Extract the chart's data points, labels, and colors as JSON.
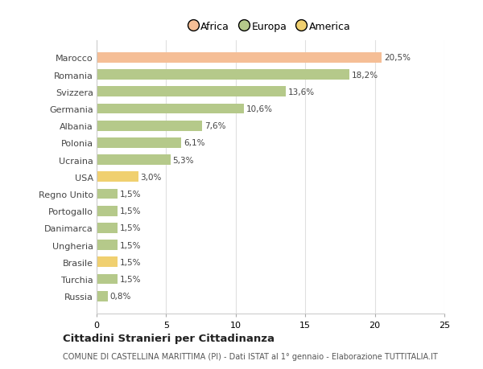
{
  "countries": [
    "Marocco",
    "Romania",
    "Svizzera",
    "Germania",
    "Albania",
    "Polonia",
    "Ucraina",
    "USA",
    "Regno Unito",
    "Portogallo",
    "Danimarca",
    "Ungheria",
    "Brasile",
    "Turchia",
    "Russia"
  ],
  "values": [
    20.5,
    18.2,
    13.6,
    10.6,
    7.6,
    6.1,
    5.3,
    3.0,
    1.5,
    1.5,
    1.5,
    1.5,
    1.5,
    1.5,
    0.8
  ],
  "labels": [
    "20,5%",
    "18,2%",
    "13,6%",
    "10,6%",
    "7,6%",
    "6,1%",
    "5,3%",
    "3,0%",
    "1,5%",
    "1,5%",
    "1,5%",
    "1,5%",
    "1,5%",
    "1,5%",
    "0,8%"
  ],
  "colors": [
    "#f5be96",
    "#b5c98a",
    "#b5c98a",
    "#b5c98a",
    "#b5c98a",
    "#b5c98a",
    "#b5c98a",
    "#f0d070",
    "#b5c98a",
    "#b5c98a",
    "#b5c98a",
    "#b5c98a",
    "#f0d070",
    "#b5c98a",
    "#b5c98a"
  ],
  "legend": [
    {
      "label": "Africa",
      "color": "#f5be96"
    },
    {
      "label": "Europa",
      "color": "#b5c98a"
    },
    {
      "label": "America",
      "color": "#f0d070"
    }
  ],
  "xlim": [
    0,
    25
  ],
  "xticks": [
    0,
    5,
    10,
    15,
    20,
    25
  ],
  "title": "Cittadini Stranieri per Cittadinanza",
  "subtitle": "COMUNE DI CASTELLINA MARITTIMA (PI) - Dati ISTAT al 1° gennaio - Elaborazione TUTTITALIA.IT",
  "background_color": "#ffffff",
  "grid_color": "#e0e0e0"
}
